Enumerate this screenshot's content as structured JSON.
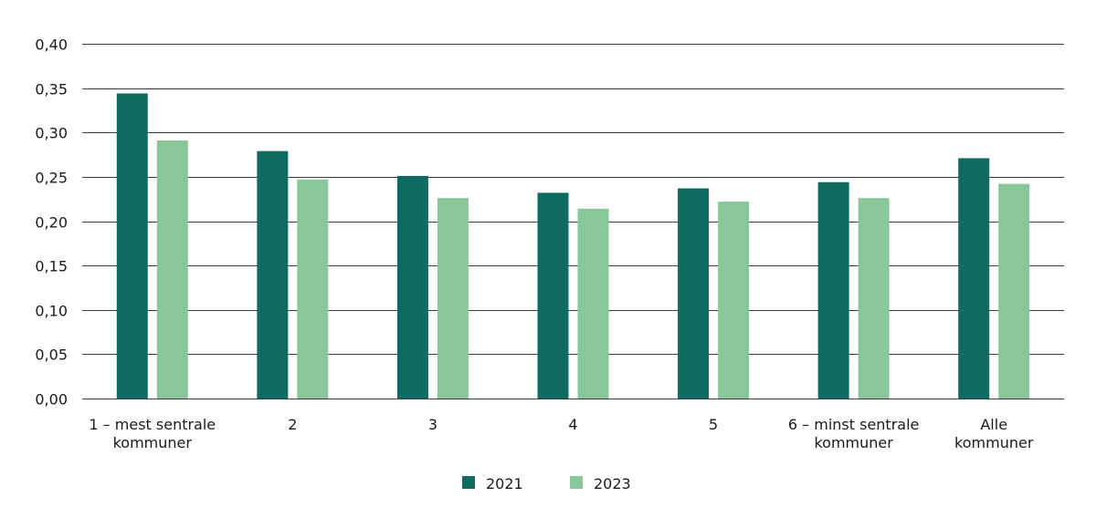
{
  "chart_data": {
    "type": "bar",
    "categories": [
      [
        "1 – mest sentrale",
        "kommuner"
      ],
      [
        "2"
      ],
      [
        "3"
      ],
      [
        "4"
      ],
      [
        "5"
      ],
      [
        "6 – minst sentrale",
        "kommuner"
      ],
      [
        "Alle",
        "kommuner"
      ]
    ],
    "series": [
      {
        "name": "2021",
        "color": "#0e6b62",
        "values": [
          0.344,
          0.279,
          0.251,
          0.232,
          0.237,
          0.244,
          0.271
        ]
      },
      {
        "name": "2023",
        "color": "#88c79a",
        "values": [
          0.291,
          0.247,
          0.226,
          0.214,
          0.222,
          0.226,
          0.242
        ]
      }
    ],
    "y_ticks": [
      "0,00",
      "0,05",
      "0,10",
      "0,15",
      "0,20",
      "0,25",
      "0,30",
      "0,35",
      "0,40"
    ],
    "ylim": [
      0,
      0.4
    ],
    "grid": true,
    "legend_position": "bottom-center"
  }
}
